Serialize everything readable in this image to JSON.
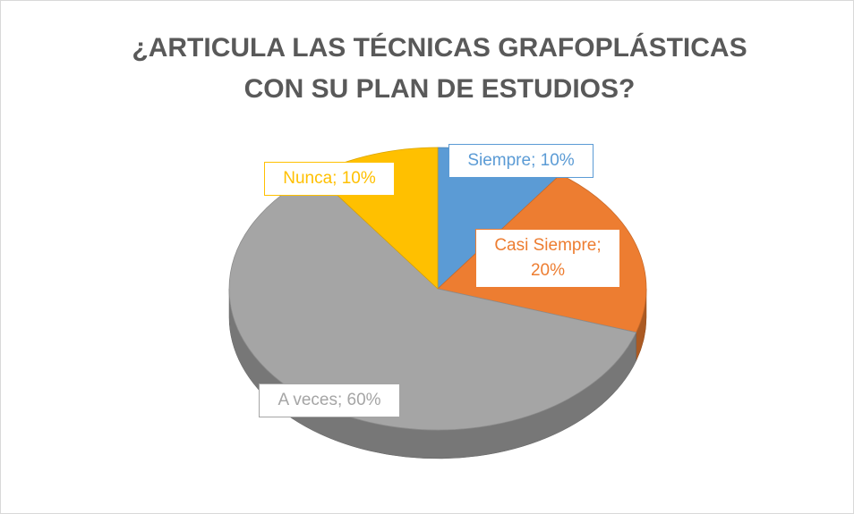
{
  "chart_data": {
    "type": "pie",
    "title": "¿ARTICULA LAS TÉCNICAS GRAFOPLÁSTICAS CON SU PLAN DE ESTUDIOS?",
    "categories": [
      "Siempre",
      "Casi Siempre",
      "A veces",
      "Nunca"
    ],
    "values": [
      10,
      20,
      60,
      10
    ],
    "value_labels": [
      "Siempre; 10%",
      "Casi Siempre; 20%",
      "A veces; 60%",
      "Nunca; 10%"
    ],
    "colors": [
      "#5b9bd5",
      "#ed7d31",
      "#a5a5a5",
      "#ffc000"
    ]
  }
}
